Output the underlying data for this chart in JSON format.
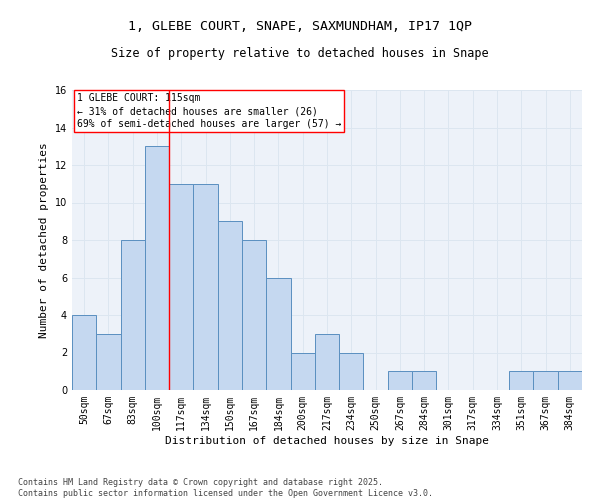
{
  "title_line1": "1, GLEBE COURT, SNAPE, SAXMUNDHAM, IP17 1QP",
  "title_line2": "Size of property relative to detached houses in Snape",
  "xlabel": "Distribution of detached houses by size in Snape",
  "ylabel": "Number of detached properties",
  "categories": [
    "50sqm",
    "67sqm",
    "83sqm",
    "100sqm",
    "117sqm",
    "134sqm",
    "150sqm",
    "167sqm",
    "184sqm",
    "200sqm",
    "217sqm",
    "234sqm",
    "250sqm",
    "267sqm",
    "284sqm",
    "301sqm",
    "317sqm",
    "334sqm",
    "351sqm",
    "367sqm",
    "384sqm"
  ],
  "values": [
    4,
    3,
    8,
    13,
    11,
    11,
    9,
    8,
    6,
    2,
    3,
    2,
    0,
    1,
    1,
    0,
    0,
    0,
    1,
    1,
    1
  ],
  "bar_color": "#c5d8f0",
  "bar_edge_color": "#5a8fc0",
  "vline_x_index": 3.5,
  "vline_color": "red",
  "annotation_box_text": "1 GLEBE COURT: 115sqm\n← 31% of detached houses are smaller (26)\n69% of semi-detached houses are larger (57) →",
  "ylim": [
    0,
    16
  ],
  "yticks": [
    0,
    2,
    4,
    6,
    8,
    10,
    12,
    14,
    16
  ],
  "grid_color": "#dce6f0",
  "background_color": "#edf2f9",
  "footer_text": "Contains HM Land Registry data © Crown copyright and database right 2025.\nContains public sector information licensed under the Open Government Licence v3.0.",
  "title_fontsize": 9.5,
  "subtitle_fontsize": 8.5,
  "axis_label_fontsize": 8,
  "tick_fontsize": 7,
  "annotation_fontsize": 7,
  "footer_fontsize": 6
}
